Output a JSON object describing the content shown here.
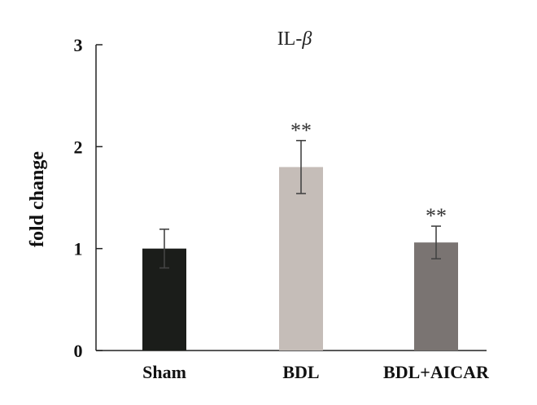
{
  "chart_data": {
    "type": "bar",
    "title_prefix": "IL-",
    "title_symbol": "β",
    "xlabel": "",
    "ylabel": "fold change",
    "ylim": [
      0,
      3
    ],
    "yticks": [
      "0",
      "1",
      "2",
      "3"
    ],
    "grid": false,
    "categories": [
      "Sham",
      "BDL",
      "BDL+AICAR"
    ],
    "values": [
      1.0,
      1.8,
      1.06
    ],
    "errors": [
      0.19,
      0.26,
      0.16
    ],
    "annotations": [
      "",
      "**",
      "**"
    ],
    "colors": [
      "#1b1d1a",
      "#c5bdb8",
      "#7a7472"
    ]
  }
}
